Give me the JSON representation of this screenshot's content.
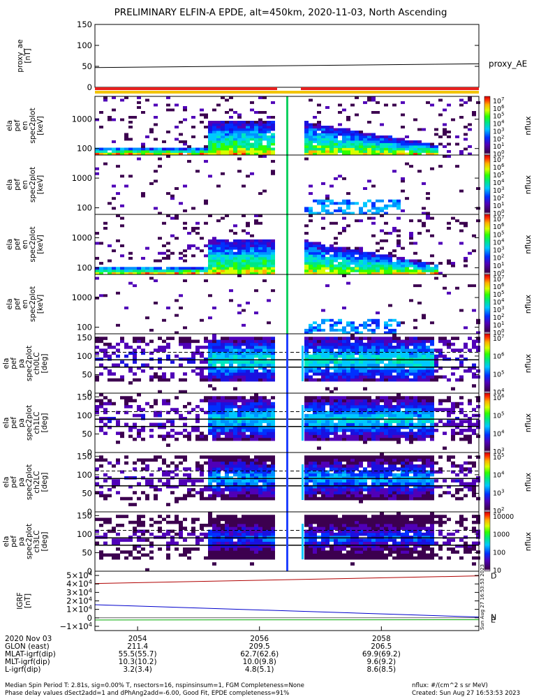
{
  "title": "PRELIMINARY ELFIN-A EPDE, alt=450km, 2020-11-03, North Ascending",
  "chart_data": [
    {
      "type": "line",
      "panel": "proxy_ae",
      "ylabel_lines": [
        "proxy_ae",
        "[nT]"
      ],
      "ylim": [
        0,
        150
      ],
      "yticks": [
        "150",
        "100",
        "50",
        "0"
      ],
      "legend": "proxy_AE",
      "series": [
        {
          "x": [
            2053.3,
            2059.6
          ],
          "values": [
            47,
            56
          ],
          "color": "#000000"
        }
      ]
    },
    {
      "type": "heatmap",
      "panel": "spec2plot energy 1",
      "ylabel_lines": [
        "ela",
        "pef",
        "en",
        "spec2plot",
        "[keV]"
      ],
      "yscale": "log",
      "ylim": [
        60,
        6000
      ],
      "yticks": [
        "1000",
        "100"
      ],
      "colorbar_label": "nflux",
      "colorbar_ticks": [
        "10^7",
        "10^6",
        "10^5",
        "10^4",
        "10^3",
        "10^2",
        "10^1",
        "10^0"
      ],
      "data_gap_minutes": [
        2056.3,
        2056.7
      ]
    },
    {
      "type": "heatmap",
      "panel": "spec2plot energy 2",
      "ylabel_lines": [
        "ela",
        "pef",
        "en",
        "spec2plot",
        "[keV]"
      ],
      "yscale": "log",
      "ylim": [
        60,
        6000
      ],
      "yticks": [
        "1000",
        "100"
      ],
      "colorbar_label": "nflux",
      "colorbar_ticks": [
        "10^7",
        "10^6",
        "10^5",
        "10^4",
        "10^3",
        "10^2",
        "10^1",
        "10^0"
      ]
    },
    {
      "type": "heatmap",
      "panel": "spec2plot energy 3",
      "ylabel_lines": [
        "ela",
        "pef",
        "en",
        "spec2plot",
        "[keV]"
      ],
      "yscale": "log",
      "ylim": [
        60,
        6000
      ],
      "yticks": [
        "1000",
        "100"
      ],
      "colorbar_label": "nflux",
      "colorbar_ticks": [
        "10^7",
        "10^6",
        "10^5",
        "10^4",
        "10^3",
        "10^2",
        "10^1",
        "10^0"
      ]
    },
    {
      "type": "heatmap",
      "panel": "spec2plot energy 4",
      "ylabel_lines": [
        "ela",
        "pef",
        "en",
        "spec2plot",
        "[keV]"
      ],
      "yscale": "log",
      "ylim": [
        60,
        6000
      ],
      "yticks": [
        "1000",
        "100"
      ],
      "colorbar_label": "nflux",
      "colorbar_ticks": [
        "10^7",
        "10^6",
        "10^5",
        "10^4",
        "10^3",
        "10^2",
        "10^1",
        "10^0"
      ]
    },
    {
      "type": "heatmap",
      "panel": "pitch angle ch0LC",
      "ylabel_lines": [
        "ela",
        "pef",
        "pa",
        "spec2plot",
        "ch0LC",
        "[deg]"
      ],
      "ylim": [
        0,
        160
      ],
      "yticks": [
        "150",
        "100",
        "50",
        "0"
      ],
      "colorbar_label": "nflux",
      "colorbar_ticks": [
        "10^7",
        "10^6",
        "10^5",
        "10^4"
      ]
    },
    {
      "type": "heatmap",
      "panel": "pitch angle ch1LC",
      "ylabel_lines": [
        "ela",
        "pef",
        "pa",
        "spec2plot",
        "ch1LC",
        "[deg]"
      ],
      "ylim": [
        0,
        160
      ],
      "yticks": [
        "150",
        "100",
        "50",
        "0"
      ],
      "colorbar_label": "nflux",
      "colorbar_ticks": [
        "10^6",
        "10^5",
        "10^4",
        "10^3"
      ]
    },
    {
      "type": "heatmap",
      "panel": "pitch angle ch2LC",
      "ylabel_lines": [
        "ela",
        "pef",
        "pa",
        "spec2plot",
        "ch2LC",
        "[deg]"
      ],
      "ylim": [
        0,
        160
      ],
      "yticks": [
        "150",
        "100",
        "50",
        "0"
      ],
      "colorbar_label": "nflux",
      "colorbar_ticks": [
        "10^5",
        "10^4",
        "10^3",
        "10^2"
      ]
    },
    {
      "type": "heatmap",
      "panel": "pitch angle ch3LC",
      "ylabel_lines": [
        "ela",
        "pef",
        "pa",
        "spec2plot",
        "ch3LC",
        "[deg]"
      ],
      "ylim": [
        0,
        160
      ],
      "yticks": [
        "150",
        "100",
        "50",
        "0"
      ],
      "colorbar_label": "nflux",
      "colorbar_ticks": [
        "10000",
        "1000",
        "100",
        "10"
      ]
    },
    {
      "type": "line",
      "panel": "IGRF",
      "ylabel_lines": [
        "IGRF",
        "[nT]"
      ],
      "ylim": [
        -15000,
        55000
      ],
      "yticks": [
        "5×10^4",
        "4×10^4",
        "3×10^4",
        "2×10^4",
        "1×10^4",
        "0",
        "−1×10^4"
      ],
      "series": [
        {
          "name": "D",
          "x": [
            2053.3,
            2059.6
          ],
          "values": [
            40500,
            49500
          ],
          "color": "#b00000"
        },
        {
          "name": "N",
          "x": [
            2053.3,
            2059.6
          ],
          "values": [
            15500,
            1000
          ],
          "color": "#0000cc"
        },
        {
          "name": "E",
          "x": [
            2053.3,
            2059.6
          ],
          "values": [
            -2500,
            -2200
          ],
          "color": "#00aa00"
        }
      ]
    }
  ],
  "xaxis": {
    "date_label": "2020 Nov 03",
    "ticks": [
      "2054",
      "2056",
      "2058"
    ],
    "tick_minutes": [
      2054,
      2056,
      2058
    ],
    "range_minutes": [
      2053.3,
      2059.6
    ]
  },
  "ephemeris": [
    {
      "label": "GLON (east)",
      "values": [
        "211.4",
        "209.5",
        "206.5"
      ]
    },
    {
      "label": "MLAT-igrf(dip)",
      "values": [
        "55.5(55.7)",
        "62.7(62.6)",
        "69.9(69.2)"
      ]
    },
    {
      "label": "MLT-igrf(dip)",
      "values": [
        "10.3(10.2)",
        "10.0(9.8)",
        "9.6(9.2)"
      ]
    },
    {
      "label": "L-igrf(dip)",
      "values": [
        "3.2(3.4)",
        "4.8(5.1)",
        "8.6(8.5)"
      ]
    }
  ],
  "side_stamp": "Sun Aug 27 16:53:53 2023",
  "footer": {
    "line1": "Median Spin Period T: 2.81s, sig=0.00% T, nsectors=16, nspinsinsum=1, FGM Completeness=None",
    "line2": "Phase delay values dSect2add=1 and dPhAng2add=-6.00, Good Fit, EPDE completeness=91%",
    "units": "nflux: #/(cm^2 s sr MeV)",
    "created": "Created: Sun Aug 27 16:53:53 2023"
  },
  "colors": {
    "science_bar": "#e8201c",
    "science_bar_underline": "#f2c400",
    "gap": "#ffffff"
  }
}
